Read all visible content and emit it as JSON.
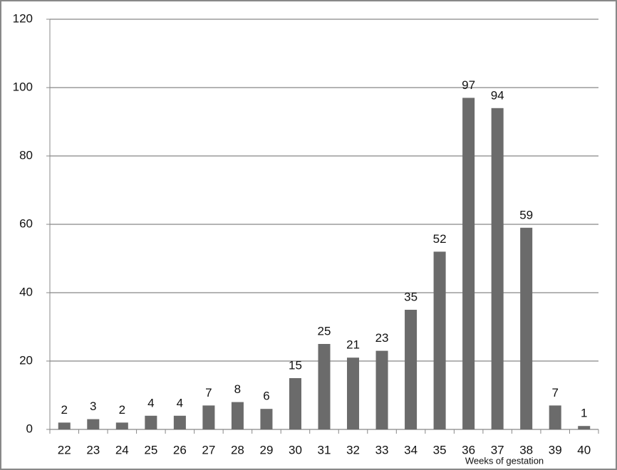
{
  "chart_data": {
    "type": "bar",
    "categories": [
      "22",
      "23",
      "24",
      "25",
      "26",
      "27",
      "28",
      "29",
      "30",
      "31",
      "32",
      "33",
      "34",
      "35",
      "36",
      "37",
      "38",
      "39",
      "40"
    ],
    "values": [
      2,
      3,
      2,
      4,
      4,
      7,
      8,
      6,
      15,
      25,
      21,
      23,
      35,
      52,
      97,
      94,
      59,
      7,
      1
    ],
    "color": "#6b6b6b",
    "x_label": "Weeks of gestation",
    "ylim": [
      0,
      120
    ],
    "yticks": [
      0,
      20,
      40,
      60,
      80,
      100,
      120
    ],
    "grid": true
  }
}
